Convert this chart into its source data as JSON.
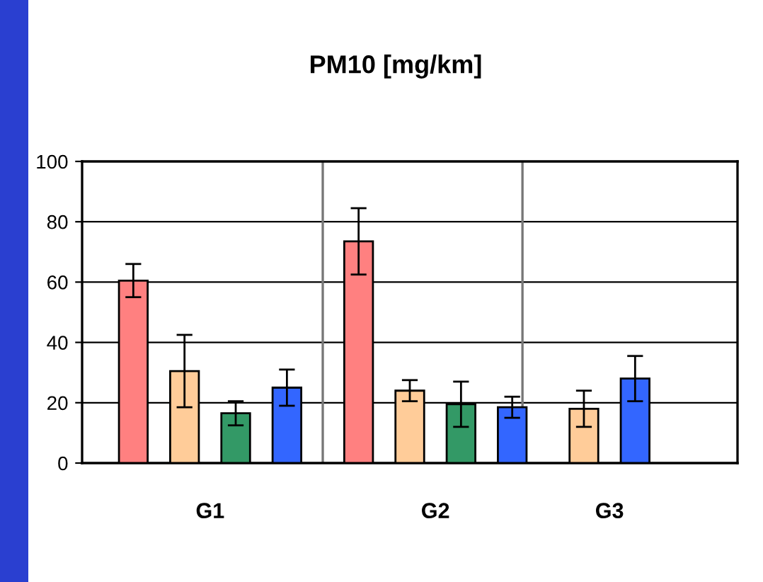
{
  "chart_data": {
    "type": "bar",
    "title": "PM10 [mg/km]",
    "categories": [
      "G1",
      "G2",
      "G3"
    ],
    "series": [
      {
        "color": "#ff8080",
        "values": [
          60.5,
          73.5,
          null
        ],
        "errors": [
          5.5,
          11,
          null
        ]
      },
      {
        "color": "#ffcc99",
        "values": [
          30.5,
          24,
          18
        ],
        "errors": [
          12,
          3.5,
          6
        ]
      },
      {
        "color": "#339966",
        "values": [
          16.5,
          19.5,
          null
        ],
        "errors": [
          4,
          7.5,
          null
        ]
      },
      {
        "color": "#3366ff",
        "values": [
          25,
          18.5,
          28
        ],
        "errors": [
          6,
          3.5,
          7.5
        ]
      }
    ],
    "ylim": [
      0,
      100
    ],
    "yticks": [
      0,
      20,
      40,
      60,
      80,
      100
    ],
    "grid": true,
    "legend": false
  }
}
